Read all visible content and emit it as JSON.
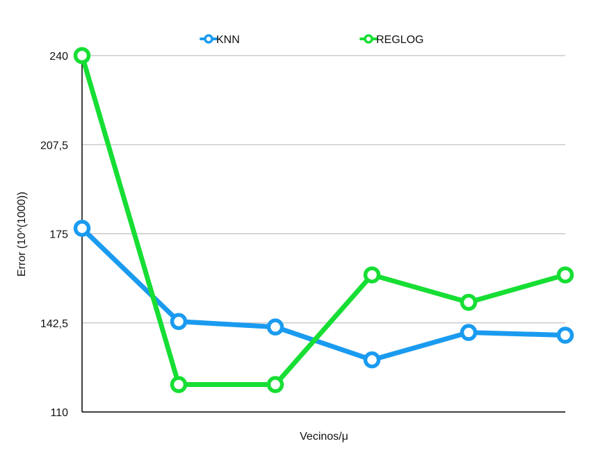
{
  "chart_data": {
    "type": "line",
    "title": "",
    "xlabel": "Vecinos/μ",
    "ylabel": "Error (10^(1000))",
    "ylim": [
      110,
      240
    ],
    "yticks": [
      "110",
      "142,5",
      "175",
      "207,5",
      "240"
    ],
    "ytick_values": [
      110,
      142.5,
      175,
      207.5,
      240
    ],
    "x_count": 6,
    "grid": true,
    "legend_position": "top",
    "series": [
      {
        "name": "KNN",
        "color": "#1a9bf0",
        "values": [
          177,
          143,
          141,
          129,
          139,
          138
        ]
      },
      {
        "name": "REGLOG",
        "color": "#17de34",
        "values": [
          240,
          120,
          120,
          160,
          150,
          160
        ]
      }
    ]
  }
}
